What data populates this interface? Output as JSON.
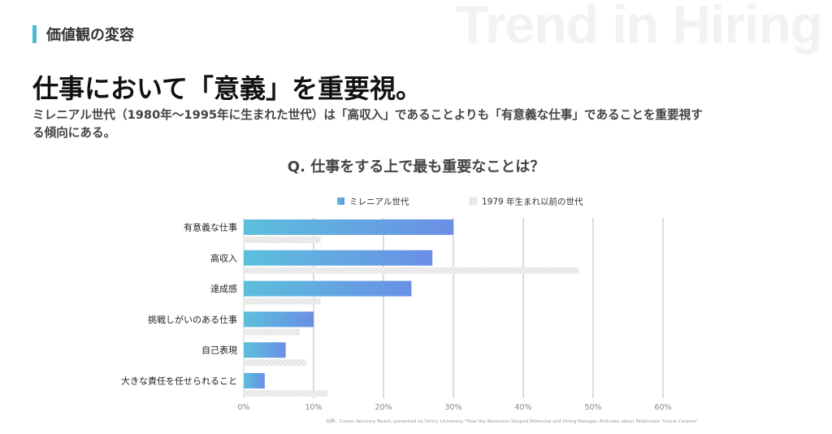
{
  "header": {
    "watermark": "Trend in Hiring",
    "section_label": "価値観の変容",
    "accent_color": "#4bb8d6"
  },
  "headline": "仕事において「意義」を重要視。",
  "lead": "ミレニアル世代（1980年〜1995年に生まれた世代）は「高収入」であることよりも「有意義な仕事」であることを重要視する傾向にある。",
  "source": "出典：Career Advisory Board, presented by DeVry University \"How the Recession Shaped Millennial and Hiring Manager Attitudes about Millennials' Future Careers\"",
  "chart_data": {
    "type": "bar",
    "orientation": "horizontal",
    "title": "Q. 仕事をする上で最も重要なことは？",
    "categories": [
      "有意義な仕事",
      "高収入",
      "達成感",
      "挑戦しがいのある仕事",
      "自己表現",
      "大きな責任を任せられること"
    ],
    "series": [
      {
        "name": "ミレニアル世代",
        "values": [
          30,
          27,
          24,
          10,
          6,
          3
        ],
        "color_start": "#5cbfdc",
        "color_end": "#6a8fe6",
        "style": "gradient"
      },
      {
        "name": "1979 年生まれ以前の世代",
        "values": [
          11,
          48,
          11,
          8,
          9,
          12
        ],
        "color": "#dcdcdc",
        "style": "hatched"
      }
    ],
    "xlim": [
      0,
      60
    ],
    "ticks": [
      0,
      10,
      20,
      30,
      40,
      50,
      60
    ],
    "tick_suffix": "%",
    "grid": true,
    "legend_position": "top"
  }
}
